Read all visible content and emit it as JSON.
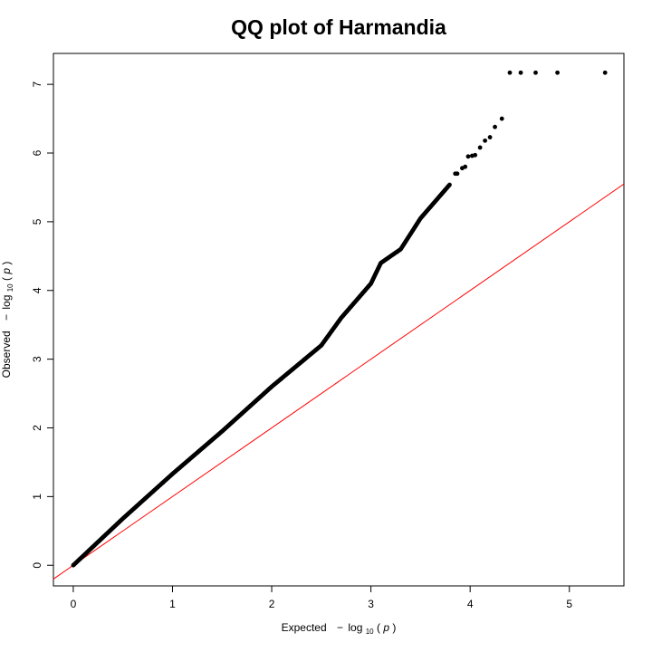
{
  "chart_data": {
    "type": "scatter",
    "title": "QQ plot of Harmandia",
    "xlabel": {
      "prefix": "Expected",
      "minus": "−",
      "log": "log",
      "base": "10",
      "open_paren": "(",
      "var": "p",
      "close_paren": ")"
    },
    "ylabel": {
      "prefix": "Observed",
      "minus": "−",
      "log": "log",
      "base": "10",
      "open_paren": "(",
      "var": "p",
      "close_paren": ")"
    },
    "xlim": [
      -0.2,
      5.55
    ],
    "ylim": [
      -0.3,
      7.45
    ],
    "xticks": [
      "0",
      "1",
      "2",
      "3",
      "4",
      "5"
    ],
    "yticks": [
      "0",
      "1",
      "2",
      "3",
      "4",
      "5",
      "6",
      "7"
    ],
    "reference_line": {
      "slope": 1,
      "intercept": 0,
      "color": "#ff0000"
    },
    "point_color": "#000000",
    "trend": [
      [
        0.0,
        0.0
      ],
      [
        0.5,
        0.68
      ],
      [
        1.0,
        1.33
      ],
      [
        1.5,
        1.95
      ],
      [
        2.0,
        2.6
      ],
      [
        2.5,
        3.2
      ],
      [
        2.7,
        3.6
      ],
      [
        3.0,
        4.1
      ],
      [
        3.1,
        4.4
      ],
      [
        3.3,
        4.6
      ],
      [
        3.5,
        5.05
      ],
      [
        3.8,
        5.55
      ]
    ],
    "points": [
      [
        3.85,
        5.7
      ],
      [
        3.87,
        5.7
      ],
      [
        3.92,
        5.78
      ],
      [
        3.95,
        5.8
      ],
      [
        3.98,
        5.95
      ],
      [
        4.02,
        5.96
      ],
      [
        4.05,
        5.97
      ],
      [
        4.1,
        6.08
      ],
      [
        4.15,
        6.18
      ],
      [
        4.2,
        6.23
      ],
      [
        4.25,
        6.38
      ],
      [
        4.32,
        6.5
      ],
      [
        4.4,
        7.17
      ],
      [
        4.51,
        7.17
      ],
      [
        4.66,
        7.17
      ],
      [
        4.88,
        7.17
      ],
      [
        5.36,
        7.17
      ]
    ]
  }
}
